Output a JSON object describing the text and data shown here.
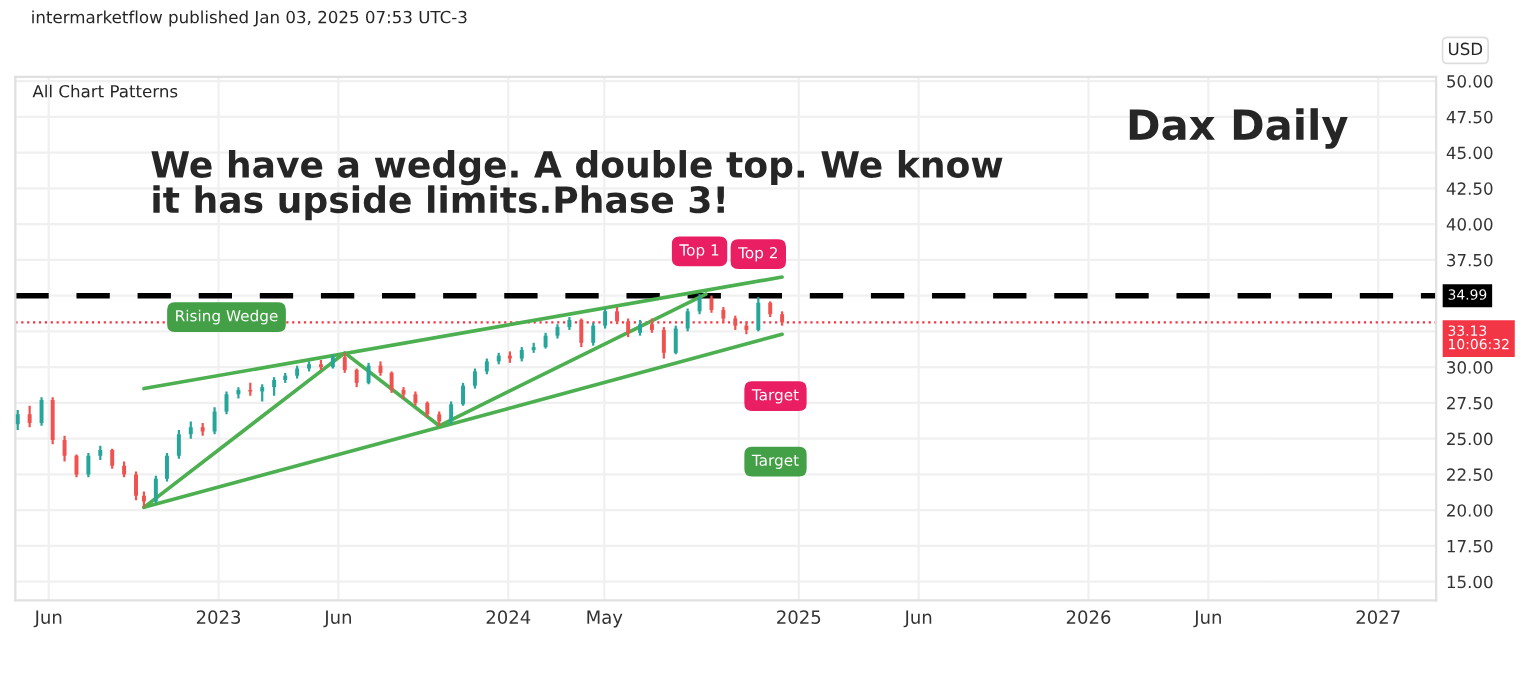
{
  "chart_data": {
    "type": "candlestick",
    "title": "Dax Daily",
    "ylabel": "USD",
    "annotations": [
      "intermarketflow published Jan 03, 2025 07:53 UTC-3",
      "All Chart Patterns",
      "We have a wedge. A double top. We know\nit has upside limits.Phase 3!",
      {
        "text": "Rising Wedge",
        "x": "2023-01-11",
        "y": 33.5
      },
      {
        "text": "Top 1",
        "x": "2024-08-29",
        "y": 35.1
      },
      {
        "text": "Top 2",
        "x": "2024-11-11",
        "y": 34.9
      },
      "Target",
      "Target"
    ],
    "x": [
      "2022-04-23",
      "2022-05-08",
      "2022-05-23",
      "2022-06-06",
      "2022-06-21",
      "2022-07-06",
      "2022-07-21",
      "2022-08-05",
      "2022-08-20",
      "2022-09-04",
      "2022-09-19",
      "2022-09-29",
      "2022-10-14",
      "2022-10-28",
      "2022-11-12",
      "2022-11-27",
      "2022-12-12",
      "2022-12-27",
      "2023-01-11",
      "2023-01-26",
      "2023-02-10",
      "2023-02-25",
      "2023-03-12",
      "2023-03-26",
      "2023-04-10",
      "2023-04-25",
      "2023-05-10",
      "2023-05-25",
      "2023-06-09",
      "2023-06-24",
      "2023-07-09",
      "2023-07-24",
      "2023-08-07",
      "2023-08-22",
      "2023-09-06",
      "2023-09-21",
      "2023-10-06",
      "2023-10-21",
      "2023-11-05",
      "2023-11-20",
      "2023-12-05",
      "2023-12-20",
      "2024-01-03",
      "2024-01-18",
      "2024-02-02",
      "2024-02-17",
      "2024-03-03",
      "2024-03-18",
      "2024-04-02",
      "2024-04-17",
      "2024-05-02",
      "2024-05-17",
      "2024-05-31",
      "2024-06-15",
      "2024-06-30",
      "2024-07-15",
      "2024-07-30",
      "2024-08-14",
      "2024-08-29",
      "2024-09-13",
      "2024-09-28",
      "2024-10-13",
      "2024-10-27",
      "2024-11-11",
      "2024-11-26",
      "2024-12-11"
    ],
    "ohlc": [
      [
        26.0,
        27.0,
        25.6,
        26.7
      ],
      [
        26.7,
        27.3,
        25.8,
        26.1
      ],
      [
        26.1,
        27.9,
        25.9,
        27.7
      ],
      [
        27.7,
        27.9,
        24.6,
        24.9
      ],
      [
        24.9,
        25.2,
        23.4,
        23.8
      ],
      [
        23.8,
        23.9,
        22.3,
        22.5
      ],
      [
        22.5,
        24.0,
        22.3,
        23.8
      ],
      [
        23.8,
        24.5,
        23.5,
        24.2
      ],
      [
        24.2,
        24.3,
        22.9,
        23.1
      ],
      [
        23.1,
        23.4,
        22.3,
        22.5
      ],
      [
        22.5,
        22.7,
        20.7,
        21.0
      ],
      [
        21.0,
        21.3,
        20.2,
        20.6
      ],
      [
        20.6,
        22.4,
        20.5,
        22.2
      ],
      [
        22.2,
        24.0,
        22.0,
        23.8
      ],
      [
        23.8,
        25.6,
        23.6,
        25.3
      ],
      [
        25.3,
        26.2,
        25.0,
        25.8
      ],
      [
        25.8,
        26.1,
        25.2,
        25.5
      ],
      [
        25.5,
        27.2,
        25.3,
        26.9
      ],
      [
        26.9,
        28.3,
        26.7,
        28.1
      ],
      [
        28.1,
        28.6,
        27.8,
        28.4
      ],
      [
        28.4,
        28.9,
        28.0,
        28.3
      ],
      [
        28.3,
        28.8,
        27.6,
        28.6
      ],
      [
        28.6,
        29.3,
        28.0,
        29.1
      ],
      [
        29.1,
        29.6,
        28.9,
        29.4
      ],
      [
        29.4,
        30.1,
        29.2,
        29.9
      ],
      [
        29.9,
        30.4,
        29.7,
        30.2
      ],
      [
        30.2,
        30.5,
        29.8,
        30.0
      ],
      [
        30.0,
        30.9,
        29.9,
        30.7
      ],
      [
        30.7,
        31.0,
        29.6,
        29.8
      ],
      [
        29.8,
        29.9,
        28.6,
        28.9
      ],
      [
        28.9,
        30.3,
        28.8,
        30.1
      ],
      [
        30.1,
        30.4,
        29.4,
        29.6
      ],
      [
        29.6,
        29.7,
        28.2,
        28.4
      ],
      [
        28.4,
        28.6,
        27.8,
        28.1
      ],
      [
        28.1,
        28.3,
        27.3,
        27.5
      ],
      [
        27.5,
        27.6,
        26.5,
        26.7
      ],
      [
        26.7,
        26.9,
        25.9,
        26.2
      ],
      [
        26.2,
        27.6,
        26.0,
        27.4
      ],
      [
        27.4,
        28.9,
        27.3,
        28.7
      ],
      [
        28.7,
        29.9,
        28.5,
        29.7
      ],
      [
        29.7,
        30.6,
        29.5,
        30.4
      ],
      [
        30.4,
        31.0,
        30.2,
        30.8
      ],
      [
        30.8,
        31.1,
        30.3,
        30.6
      ],
      [
        30.6,
        31.4,
        30.4,
        31.2
      ],
      [
        31.2,
        31.7,
        31.0,
        31.4
      ],
      [
        31.4,
        32.4,
        31.3,
        32.2
      ],
      [
        32.2,
        33.0,
        32.0,
        32.8
      ],
      [
        32.8,
        33.5,
        32.6,
        33.3
      ],
      [
        33.3,
        33.4,
        31.4,
        31.7
      ],
      [
        31.7,
        33.1,
        31.5,
        32.9
      ],
      [
        32.9,
        34.1,
        32.7,
        33.9
      ],
      [
        33.9,
        34.2,
        33.0,
        33.2
      ],
      [
        33.2,
        33.4,
        32.1,
        32.4
      ],
      [
        32.4,
        33.3,
        32.2,
        33.0
      ],
      [
        33.0,
        33.4,
        32.4,
        32.6
      ],
      [
        32.6,
        32.8,
        30.6,
        31.0
      ],
      [
        31.0,
        32.9,
        30.9,
        32.7
      ],
      [
        32.7,
        34.1,
        32.5,
        33.9
      ],
      [
        33.9,
        35.1,
        33.7,
        34.8
      ],
      [
        34.8,
        35.0,
        33.8,
        34.0
      ],
      [
        34.0,
        34.2,
        33.1,
        33.4
      ],
      [
        33.4,
        33.6,
        32.6,
        32.9
      ],
      [
        32.9,
        33.2,
        32.3,
        32.6
      ],
      [
        32.6,
        34.9,
        32.5,
        34.5
      ],
      [
        34.5,
        34.6,
        33.5,
        33.7
      ],
      [
        33.7,
        33.9,
        32.9,
        33.13
      ]
    ],
    "series": [
      {
        "type": "line",
        "color": "#4caf50",
        "x": [
          "2022-09-29",
          "2024-12-11"
        ],
        "values": [
          28.5,
          36.3
        ]
      },
      {
        "type": "line",
        "color": "#4caf50",
        "x": [
          "2022-09-29",
          "2024-12-11"
        ],
        "values": [
          20.2,
          32.3
        ]
      },
      {
        "type": "line",
        "color": "#4caf50",
        "x": [
          "2022-09-29",
          "2023-06-09",
          "2023-10-06",
          "2024-09-06"
        ],
        "values": [
          20.2,
          31.0,
          25.9,
          35.1
        ]
      }
    ],
    "ref_lines": [
      {
        "axis": "y",
        "value": 34.99,
        "label": "34.99",
        "color": "#000000",
        "line_style": "dashed"
      },
      {
        "axis": "y",
        "value": 33.13,
        "label": "33.13\n10:06:32",
        "color": "#f23645",
        "line_style": "dotted"
      }
    ],
    "xlim": [
      "2022-04-20",
      "2027-03-15"
    ],
    "ylim": [
      13.7,
      50.3
    ],
    "xticks": [
      {
        "value": "2022-06-01",
        "label": "Jun"
      },
      {
        "value": "2023-01-01",
        "label": "2023"
      },
      {
        "value": "2023-06-01",
        "label": "Jun"
      },
      {
        "value": "2024-01-01",
        "label": "2024"
      },
      {
        "value": "2024-05-01",
        "label": "May"
      },
      {
        "value": "2025-01-01",
        "label": "2025"
      },
      {
        "value": "2025-06-01",
        "label": "Jun"
      },
      {
        "value": "2026-01-01",
        "label": "2026"
      },
      {
        "value": "2026-06-01",
        "label": "Jun"
      },
      {
        "value": "2027-01-01",
        "label": "2027"
      }
    ],
    "yticks": [
      {
        "value": 15,
        "label": "15.00"
      },
      {
        "value": 17.5,
        "label": "17.50"
      },
      {
        "value": 20,
        "label": "20.00"
      },
      {
        "value": 22.5,
        "label": "22.50"
      },
      {
        "value": 25,
        "label": "25.00"
      },
      {
        "value": 27.5,
        "label": "27.50"
      },
      {
        "value": 30,
        "label": "30.00"
      },
      {
        "value": 32.5,
        "label": null
      },
      {
        "value": 35,
        "label": null
      },
      {
        "value": 37.5,
        "label": "37.50"
      },
      {
        "value": 40,
        "label": "40.00"
      },
      {
        "value": 42.5,
        "label": "42.50"
      },
      {
        "value": 45,
        "label": "45.00"
      },
      {
        "value": 47.5,
        "label": "47.50"
      },
      {
        "value": 50,
        "label": "50.00"
      }
    ],
    "grid": true,
    "marker": "none"
  }
}
